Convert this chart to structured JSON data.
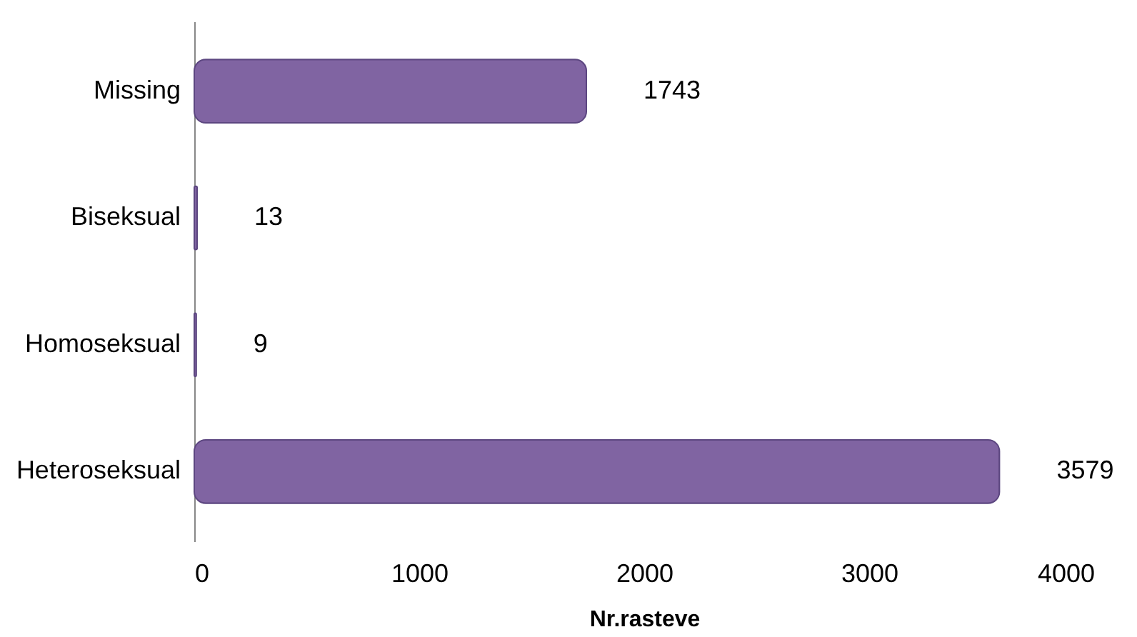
{
  "chart_data": {
    "type": "bar",
    "orientation": "horizontal",
    "categories": [
      "Missing",
      "Biseksual",
      "Homoseksual",
      "Heteroseksual"
    ],
    "values": [
      1743,
      13,
      9,
      3579
    ],
    "color": "#8064a2",
    "xlim": [
      0,
      4000
    ],
    "xticks": [
      0,
      1000,
      2000,
      3000,
      4000
    ],
    "xlabel": "Nr.rasteve",
    "data_labels": true
  }
}
